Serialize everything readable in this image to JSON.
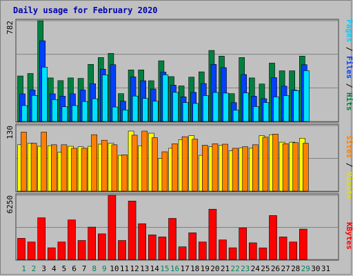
{
  "title": "Daily usage for February 2020",
  "colors": {
    "hits": "#008040",
    "files": "#0040ff",
    "pages": "#00e0ff",
    "visits": "#ffff00",
    "sites": "#ff8000",
    "kbytes": "#ff0000",
    "weekend_day": "#00805c",
    "weekday": "#000000"
  },
  "legends": {
    "top": [
      "Pages",
      "Files",
      "Hits"
    ],
    "middle": [
      "Sites",
      "Visits"
    ],
    "bottom": [
      "KBytes"
    ]
  },
  "chart_data": [
    {
      "type": "bar",
      "panel": "hits-files-pages",
      "ymax_label": "782",
      "ylim": [
        0,
        782
      ],
      "categories": [
        "1",
        "2",
        "3",
        "4",
        "5",
        "6",
        "7",
        "8",
        "9",
        "10",
        "11",
        "12",
        "13",
        "14",
        "15",
        "16",
        "17",
        "18",
        "19",
        "20",
        "21",
        "22",
        "23",
        "24",
        "25",
        "26",
        "27",
        "28",
        "29",
        "30",
        "31"
      ],
      "series": [
        {
          "name": "Hits",
          "values": [
            353,
            372,
            782,
            338,
            317,
            338,
            334,
            443,
            496,
            528,
            216,
            400,
            400,
            316,
            471,
            348,
            276,
            344,
            385,
            551,
            507,
            216,
            496,
            338,
            291,
            453,
            393,
            393,
            507,
            0,
            0
          ]
        },
        {
          "name": "Files",
          "values": [
            214,
            244,
            626,
            214,
            196,
            214,
            244,
            293,
            406,
            441,
            157,
            346,
            316,
            252,
            383,
            282,
            191,
            226,
            294,
            443,
            418,
            146,
            364,
            196,
            177,
            340,
            274,
            244,
            441,
            0,
            0
          ]
        },
        {
          "name": "Pages",
          "values": [
            123,
            202,
            421,
            169,
            114,
            123,
            155,
            176,
            361,
            112,
            89,
            197,
            179,
            157,
            362,
            226,
            147,
            140,
            201,
            225,
            220,
            88,
            221,
            115,
            147,
            190,
            200,
            240,
            394,
            0,
            0
          ]
        }
      ]
    },
    {
      "type": "bar",
      "panel": "visits-sites",
      "ymax_label": "130",
      "ylim": [
        0,
        130
      ],
      "categories": [
        "1",
        "2",
        "3",
        "4",
        "5",
        "6",
        "7",
        "8",
        "9",
        "10",
        "11",
        "12",
        "13",
        "14",
        "15",
        "16",
        "17",
        "18",
        "19",
        "20",
        "21",
        "22",
        "23",
        "24",
        "25",
        "26",
        "27",
        "28",
        "29",
        "30",
        "31"
      ],
      "series": [
        {
          "name": "Visits",
          "values": [
            92,
            95,
            89,
            90,
            77,
            89,
            88,
            89,
            93,
            95,
            71,
            119,
            90,
            115,
            65,
            85,
            102,
            110,
            71,
            88,
            91,
            80,
            86,
            85,
            110,
            112,
            97,
            97,
            105,
            0,
            0
          ]
        },
        {
          "name": "Sites",
          "values": [
            117,
            95,
            117,
            92,
            92,
            85,
            85,
            112,
            101,
            92,
            72,
            111,
            119,
            106,
            78,
            94,
            108,
            103,
            91,
            94,
            93,
            85,
            88,
            92,
            107,
            113,
            94,
            96,
            95,
            0,
            0
          ]
        }
      ]
    },
    {
      "type": "bar",
      "panel": "kbytes",
      "ymax_label": "6250",
      "ylim": [
        0,
        6250
      ],
      "categories": [
        "1",
        "2",
        "3",
        "4",
        "5",
        "6",
        "7",
        "8",
        "9",
        "10",
        "11",
        "12",
        "13",
        "14",
        "15",
        "16",
        "17",
        "18",
        "19",
        "20",
        "21",
        "22",
        "23",
        "24",
        "25",
        "26",
        "27",
        "28",
        "29",
        "30",
        "31"
      ],
      "series": [
        {
          "name": "KBytes",
          "values": [
            2058,
            1697,
            4062,
            1136,
            1697,
            3851,
            1850,
            3154,
            2491,
            6250,
            1850,
            5683,
            3481,
            2395,
            2196,
            4001,
            1232,
            2596,
            1697,
            4890,
            1902,
            1136,
            3069,
            1618,
            1128,
            4279,
            2196,
            1697,
            2959,
            0,
            0
          ]
        }
      ]
    }
  ],
  "weekends": [
    "1",
    "2",
    "8",
    "9",
    "15",
    "16",
    "22",
    "23",
    "29"
  ]
}
